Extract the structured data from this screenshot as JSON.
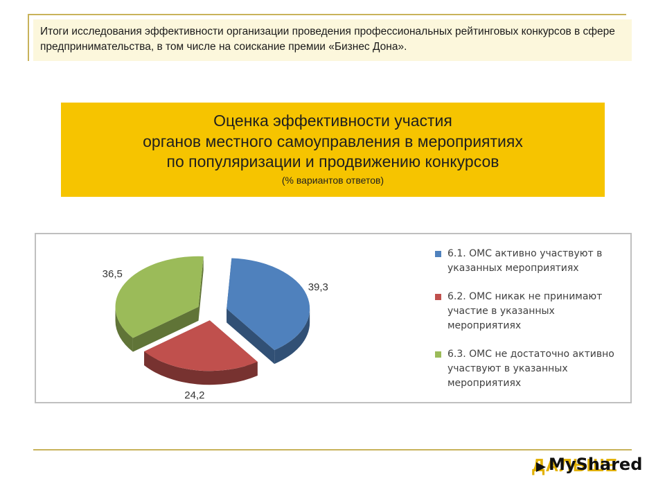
{
  "header": {
    "text": "Итоги исследования эффективности организации проведения профессиональных рейтинговых конкурсов в сфере предпринимательства, в том числе на соискание премии «Бизнес Дона»."
  },
  "title": {
    "line1": "Оценка эффективности участия",
    "line2": "органов местного самоуправления в мероприятиях",
    "line3": "по популяризации и продвижению конкурсов",
    "subtitle": "(% вариантов ответов)"
  },
  "chart_data": {
    "type": "pie",
    "style": "3d-exploded",
    "legend_position": "right",
    "series": [
      {
        "values": [
          39.3,
          24.2,
          36.5
        ],
        "labels": [
          "39,3",
          "24,2",
          "36,5"
        ],
        "legend": [
          "6.1.   ОМС активно участвуют в указанных мероприятиях",
          "6.2.   ОМС никак не принимают участие в указанных мероприятиях",
          "6.3.   ОМС не достаточно активно участвуют в указанных мероприятиях"
        ],
        "colors": [
          "#4f81bd",
          "#c0504d",
          "#9bbb59"
        ]
      }
    ]
  },
  "logo": {
    "back_text": "ДАЛЬШЕ",
    "front_text": "MyShared"
  }
}
